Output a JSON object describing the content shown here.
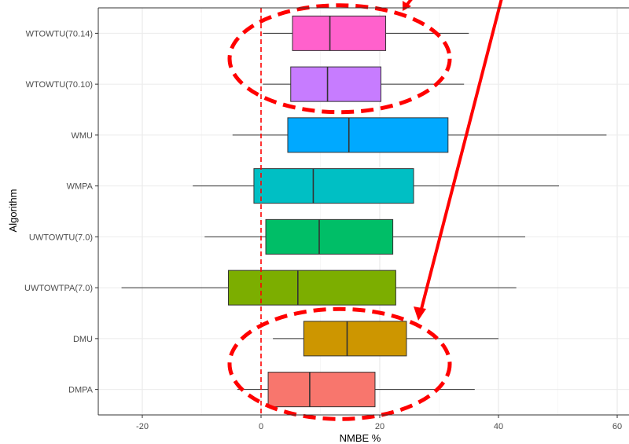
{
  "chart_data": {
    "type": "boxplot",
    "orientation": "horizontal",
    "xlabel": "NMBE %",
    "ylabel": "Algorithm",
    "xlim": [
      -27,
      61
    ],
    "x_ticks": [
      -20,
      0,
      20,
      40,
      60
    ],
    "x_tick_labels": [
      "-20",
      "0",
      "20",
      "40",
      "60"
    ],
    "reference_line": {
      "x": 0,
      "style": "dashed",
      "color": "#ff0000"
    },
    "grid": true,
    "legend": "none",
    "categories": [
      "DMPA",
      "DMU",
      "UWTOWTPA(7.0)",
      "UWTOWTU(7.0)",
      "WMPA",
      "WMU",
      "WTOWTU(70.10)",
      "WTOWTU(70.14)"
    ],
    "boxes": [
      {
        "label": "DMPA",
        "min": -4,
        "q1": 1.2,
        "median": 8.2,
        "q3": 19.2,
        "max": 36.0,
        "color": "#f8766d"
      },
      {
        "label": "DMU",
        "min": 2.0,
        "q1": 7.2,
        "median": 14.5,
        "q3": 24.5,
        "max": 40.0,
        "color": "#cd9600"
      },
      {
        "label": "UWTOWTPA(7.0)",
        "min": -23.5,
        "q1": -5.5,
        "median": 6.2,
        "q3": 22.7,
        "max": 43.0,
        "color": "#7cae00"
      },
      {
        "label": "UWTOWTU(7.0)",
        "min": -9.5,
        "q1": 0.8,
        "median": 9.8,
        "q3": 22.2,
        "max": 44.5,
        "color": "#00be67"
      },
      {
        "label": "WMPA",
        "min": -11.5,
        "q1": -1.2,
        "median": 8.8,
        "q3": 25.7,
        "max": 50.2,
        "color": "#00bfc4"
      },
      {
        "label": "WMU",
        "min": -4.8,
        "q1": 4.5,
        "median": 14.8,
        "q3": 31.5,
        "max": 58.2,
        "color": "#00a9ff"
      },
      {
        "label": "WTOWTU(70.10)",
        "min": 0.3,
        "q1": 5.0,
        "median": 11.2,
        "q3": 20.2,
        "max": 34.2,
        "color": "#c77cff"
      },
      {
        "label": "WTOWTU(70.14)",
        "min": 0.3,
        "q1": 5.3,
        "median": 11.6,
        "q3": 21.0,
        "max": 35.0,
        "color": "#ff61cc"
      }
    ]
  },
  "annotations": {
    "color": "#ff0000",
    "items": [
      {
        "type": "dashed-ellipse",
        "encloses": [
          "WTOWTU(70.14)",
          "WTOWTU(70.10)"
        ]
      },
      {
        "type": "dashed-ellipse",
        "encloses": [
          "DMU",
          "DMPA"
        ]
      },
      {
        "type": "arrow",
        "points_to": "top ellipse"
      },
      {
        "type": "arrow",
        "points_to": "bottom ellipse"
      }
    ]
  }
}
